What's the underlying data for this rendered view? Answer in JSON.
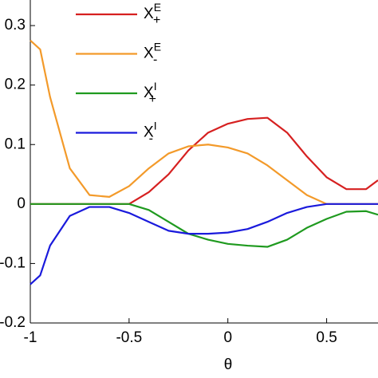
{
  "chart_data": {
    "type": "line",
    "xlabel": "θ",
    "x": [
      -1,
      -0.95,
      -0.9,
      -0.8,
      -0.7,
      -0.6,
      -0.5,
      -0.4,
      -0.3,
      -0.2,
      -0.1,
      0,
      0.1,
      0.2,
      0.3,
      0.4,
      0.5,
      0.6,
      0.7,
      0.76
    ],
    "series": [
      {
        "name": "X",
        "sup": "E",
        "sub": "+",
        "color": "#d62020",
        "values": [
          0,
          0,
          0,
          0,
          0,
          0,
          0,
          0.02,
          0.05,
          0.09,
          0.12,
          0.135,
          0.143,
          0.145,
          0.12,
          0.08,
          0.045,
          0.025,
          0.025,
          0.04
        ]
      },
      {
        "name": "X",
        "sup": "E",
        "sub": "-",
        "color": "#f39a2a",
        "values": [
          0.275,
          0.26,
          0.18,
          0.06,
          0.015,
          0.012,
          0.03,
          0.06,
          0.085,
          0.097,
          0.1,
          0.095,
          0.085,
          0.065,
          0.04,
          0.015,
          0,
          0,
          0,
          0
        ]
      },
      {
        "name": "X",
        "sup": "I",
        "sub": "+",
        "color": "#1f9a1f",
        "values": [
          0,
          0,
          0,
          0,
          0,
          0,
          0,
          -0.01,
          -0.03,
          -0.05,
          -0.06,
          -0.067,
          -0.07,
          -0.072,
          -0.06,
          -0.04,
          -0.025,
          -0.013,
          -0.012,
          -0.018
        ]
      },
      {
        "name": "X",
        "sup": "I",
        "sub": "-",
        "color": "#1a1adc",
        "values": [
          -0.135,
          -0.12,
          -0.07,
          -0.02,
          -0.005,
          -0.005,
          -0.015,
          -0.03,
          -0.045,
          -0.05,
          -0.05,
          -0.048,
          -0.042,
          -0.03,
          -0.015,
          -0.005,
          0,
          0,
          0,
          0
        ]
      }
    ],
    "xlim": [
      -1,
      0.76
    ],
    "ylim": [
      -0.2,
      0.343
    ],
    "xticks": [
      -1,
      -0.5,
      0,
      0.5
    ],
    "yticks": [
      -0.2,
      -0.1,
      0,
      0.1,
      0.2,
      0.3
    ]
  }
}
